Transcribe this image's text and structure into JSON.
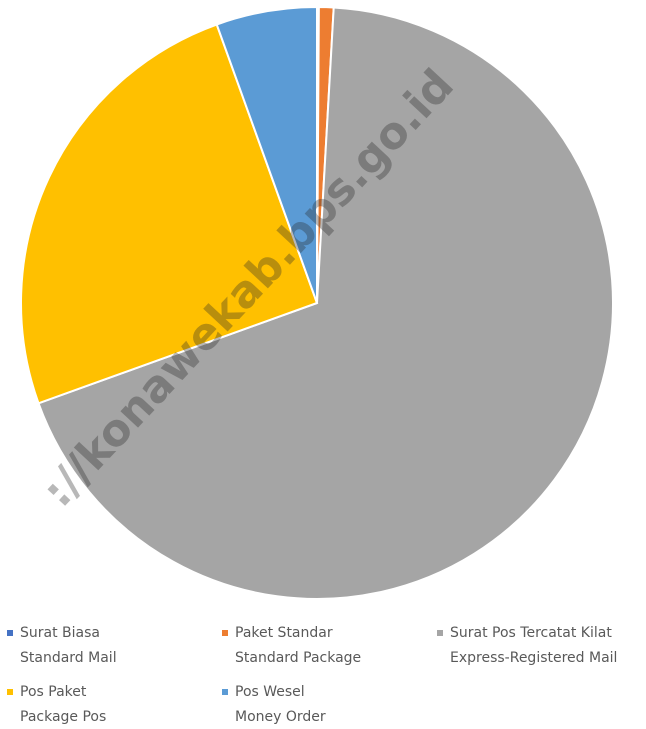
{
  "chart_data": {
    "type": "pie",
    "categories": [
      [
        "Surat Biasa",
        "Standard Mail"
      ],
      [
        "Paket Standar",
        "Standard Package"
      ],
      [
        "Surat Pos Tercatat Kilat",
        "Express-Registered Mail"
      ],
      [
        "Pos Paket",
        "Package Pos"
      ],
      [
        "Pos Wesel",
        "Money Order"
      ]
    ],
    "values": [
      0.1,
      0.8,
      68.6,
      25,
      5.5
    ],
    "colors": [
      "#4472c4",
      "#ed7d31",
      "#a5a5a5",
      "#ffc000",
      "#5b9bd5"
    ],
    "legend": "bottom",
    "watermark": "://konawekab.bps.go.id"
  }
}
